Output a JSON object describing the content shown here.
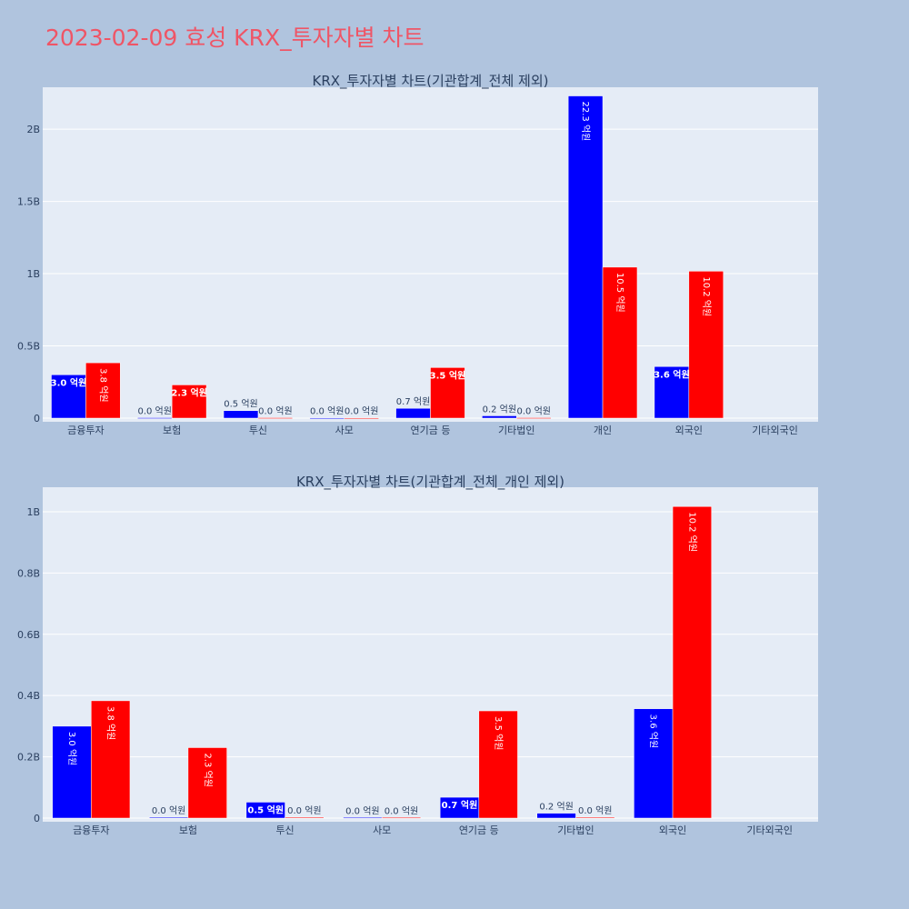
{
  "page": {
    "title": "2023-02-09 효성 KRX_투자자별 차트"
  },
  "colors": {
    "background": "#b0c4de",
    "plot_bg": "#e5ecf6",
    "buy": "#0000ff",
    "sell": "#ff0000",
    "title": "#ef5566"
  },
  "chart_data": [
    {
      "type": "bar",
      "title": "KRX_투자자별 차트(기관합계_전체 제외)",
      "categories": [
        "금융투자",
        "보험",
        "투신",
        "사모",
        "연기금 등",
        "기타법인",
        "개인",
        "외국인",
        "기타외국인"
      ],
      "series": [
        {
          "color": "#0000ff",
          "values": [
            300000000,
            3000000,
            52000000,
            2000000,
            68000000,
            16000000,
            2230000000,
            357000000,
            0
          ],
          "labels": [
            "3.0 억원",
            "0.0 억원",
            "0.5 억원",
            "0.0 억원",
            "0.7 억원",
            "0.2 억원",
            "22.3 억원",
            "3.6 억원",
            ""
          ]
        },
        {
          "color": "#ff0000",
          "values": [
            383000000,
            230000000,
            3000000,
            2000000,
            350000000,
            3000000,
            1045000000,
            1017000000,
            0
          ],
          "labels": [
            "3.8 억원",
            "2.3 억원",
            "0.0 억원",
            "0.0 억원",
            "3.5 억원",
            "0.0 억원",
            "10.5 억원",
            "10.2 억원",
            ""
          ]
        }
      ],
      "ylim": [
        0,
        2290000000
      ],
      "yticks": [
        {
          "value": 0,
          "label": "0"
        },
        {
          "value": 500000000,
          "label": "0.5B"
        },
        {
          "value": 1000000000,
          "label": "1B"
        },
        {
          "value": 1500000000,
          "label": "1.5B"
        },
        {
          "value": 2000000000,
          "label": "2B"
        }
      ],
      "grid": true,
      "legend": "none"
    },
    {
      "type": "bar",
      "title": "KRX_투자자별 차트(기관합계_전체_개인 제외)",
      "categories": [
        "금융투자",
        "보험",
        "투신",
        "사모",
        "연기금 등",
        "기타법인",
        "외국인",
        "기타외국인"
      ],
      "series": [
        {
          "color": "#0000ff",
          "values": [
            300000000,
            3000000,
            52000000,
            2000000,
            68000000,
            16000000,
            357000000,
            0
          ],
          "labels": [
            "3.0 억원",
            "0.0 억원",
            "0.5 억원",
            "0.0 억원",
            "0.7 억원",
            "0.2 억원",
            "3.6 억원",
            ""
          ]
        },
        {
          "color": "#ff0000",
          "values": [
            383000000,
            230000000,
            3000000,
            2000000,
            350000000,
            3000000,
            1017000000,
            0
          ],
          "labels": [
            "3.8 억원",
            "2.3 억원",
            "0.0 억원",
            "0.0 억원",
            "3.5 억원",
            "0.0 억원",
            "10.2 억원",
            ""
          ]
        }
      ],
      "ylim": [
        0,
        1080000000
      ],
      "yticks": [
        {
          "value": 0,
          "label": "0"
        },
        {
          "value": 200000000,
          "label": "0.2B"
        },
        {
          "value": 400000000,
          "label": "0.4B"
        },
        {
          "value": 600000000,
          "label": "0.6B"
        },
        {
          "value": 800000000,
          "label": "0.8B"
        },
        {
          "value": 1000000000,
          "label": "1B"
        }
      ],
      "grid": true,
      "legend": "none"
    }
  ]
}
